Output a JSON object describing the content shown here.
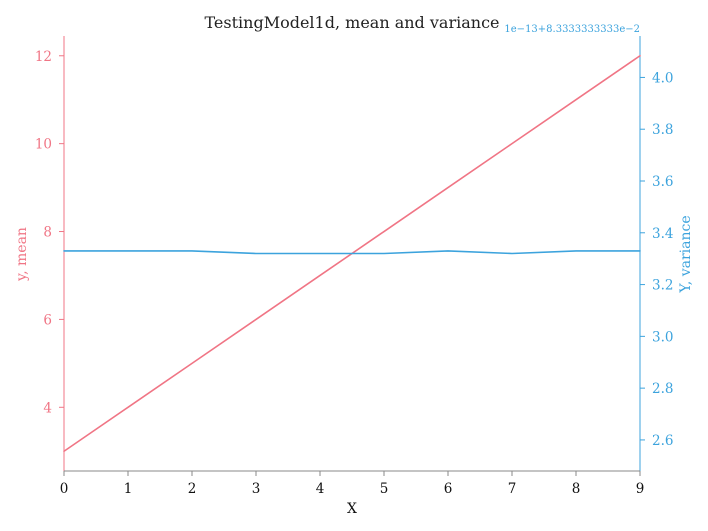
{
  "chart_data": {
    "type": "line",
    "title": "TestingModel1d, mean and variance",
    "xlabel": "X",
    "xlim": [
      0,
      9
    ],
    "x_ticks": [
      "0",
      "1",
      "2",
      "3",
      "4",
      "5",
      "6",
      "7",
      "8",
      "9"
    ],
    "x": [
      0,
      1,
      2,
      3,
      4,
      5,
      6,
      7,
      8,
      9
    ],
    "left_axis": {
      "label": "y, mean",
      "color": "#f07585",
      "ylim": [
        2.55,
        12.45
      ],
      "ticks": [
        4,
        6,
        8,
        10,
        12
      ],
      "tick_labels": [
        "4",
        "6",
        "8",
        "10",
        "12"
      ]
    },
    "right_axis": {
      "label": "Y, variance",
      "color": "#3ca3dd",
      "ylim": [
        2.48,
        4.16
      ],
      "ticks": [
        2.6,
        2.8,
        3.0,
        3.2,
        3.4,
        3.6,
        3.8,
        4.0
      ],
      "tick_labels": [
        "2.6",
        "2.8",
        "3.0",
        "3.2",
        "3.4",
        "3.6",
        "3.8",
        "4.0"
      ],
      "offset_text": "1e−13+8.3333333333e−2"
    },
    "series": [
      {
        "axis": "left",
        "color": "#f07585",
        "values": [
          3,
          4,
          5,
          6,
          7,
          8,
          9,
          10,
          11,
          12
        ]
      },
      {
        "axis": "right",
        "color": "#3ca3dd",
        "values": [
          3.33,
          3.33,
          3.33,
          3.32,
          3.32,
          3.32,
          3.33,
          3.32,
          3.33,
          3.33
        ]
      }
    ],
    "grid": false
  }
}
